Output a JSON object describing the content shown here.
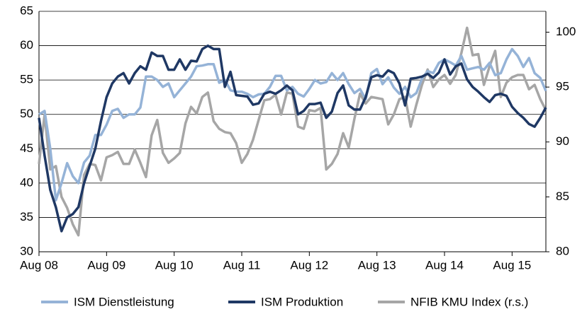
{
  "chart_data": {
    "type": "line",
    "categories": [
      "Aug 08",
      null,
      null,
      null,
      null,
      null,
      null,
      null,
      null,
      null,
      null,
      null,
      "Aug 09",
      null,
      null,
      null,
      null,
      null,
      null,
      null,
      null,
      null,
      null,
      null,
      "Aug 10",
      null,
      null,
      null,
      null,
      null,
      null,
      null,
      null,
      null,
      null,
      null,
      "Aug 11",
      null,
      null,
      null,
      null,
      null,
      null,
      null,
      null,
      null,
      null,
      null,
      "Aug 12",
      null,
      null,
      null,
      null,
      null,
      null,
      null,
      null,
      null,
      null,
      null,
      "Aug 13",
      null,
      null,
      null,
      null,
      null,
      null,
      null,
      null,
      null,
      null,
      null,
      "Aug 14",
      null,
      null,
      null,
      null,
      null,
      null,
      null,
      null,
      null,
      null,
      null,
      "Aug 15",
      null,
      null,
      null,
      null,
      null,
      null
    ],
    "series": [
      {
        "name": "ISM Dienstleistung",
        "color": "#95b3d7",
        "values": [
          50,
          50.5,
          45,
          37.5,
          40,
          42.9,
          41,
          40,
          43,
          44,
          47,
          47,
          48.5,
          50.5,
          50.8,
          49.5,
          50,
          50,
          51,
          55.5,
          55.5,
          55,
          54,
          54.5,
          52.5,
          53.5,
          54.5,
          55.5,
          57,
          57.1,
          57.3,
          57.3,
          54.6,
          55,
          53.5,
          53.3,
          53.3,
          53,
          52.5,
          52.9,
          53,
          54,
          55.6,
          55.6,
          53.5,
          54,
          53,
          52.6,
          53.7,
          55,
          54.5,
          54.7,
          56,
          55,
          56,
          54.4,
          53.1,
          53.7,
          52.2,
          56,
          56.6,
          54.4,
          55.4,
          53.9,
          53,
          54,
          52.5,
          53.1,
          55.2,
          56.3,
          56,
          57.5,
          58,
          57.6,
          57.1,
          58.5,
          56.5,
          56.7,
          56.9,
          56.5,
          57.5,
          55.7,
          56,
          58,
          59.5,
          58.5,
          56.9,
          58.2,
          56,
          55.3,
          53.4
        ]
      },
      {
        "name": "ISM Produktion",
        "color": "#1f3864",
        "values": [
          49.5,
          44,
          39,
          36.5,
          33,
          35,
          35.5,
          36.5,
          40,
          42.5,
          45,
          49,
          52.5,
          54.5,
          55.5,
          56,
          54.5,
          56,
          57,
          56.5,
          59,
          58.5,
          58.5,
          56.5,
          56.5,
          58,
          56.5,
          57.8,
          57.7,
          59.5,
          60,
          59.5,
          59.5,
          54,
          56.2,
          52.8,
          52.7,
          52.6,
          51.4,
          51.6,
          53,
          53.3,
          53,
          53.5,
          54.2,
          53.5,
          50,
          50.5,
          51.5,
          51.5,
          51.7,
          49.5,
          50.4,
          53.1,
          54.2,
          51.3,
          50.7,
          50.7,
          52.5,
          55.4,
          55.7,
          55.5,
          56.4,
          56,
          54.5,
          51.3,
          55.2,
          55.3,
          55.5,
          55.9,
          55.3,
          56.1,
          58,
          55.8,
          57,
          57.4,
          55.1,
          54,
          53.3,
          52.5,
          51.8,
          52.8,
          53,
          52.7,
          51.1,
          50.2,
          49.5,
          48.6,
          48.2,
          49.5,
          51
        ]
      },
      {
        "name": "NFIB KMU Index (r.s.)",
        "color": "#a6a6a6",
        "axis": "y2",
        "values": [
          88,
          92.5,
          87.5,
          87.8,
          85,
          84,
          82.5,
          81.5,
          87,
          88,
          87.9,
          86.5,
          88.6,
          88.8,
          89.1,
          88,
          88,
          89.3,
          88.1,
          86.8,
          90.6,
          92,
          89,
          88.1,
          88.5,
          89,
          91.7,
          93.2,
          92.6,
          94.1,
          94.5,
          91.9,
          91.2,
          90.9,
          90.8,
          89.9,
          88.1,
          88.9,
          90.2,
          92,
          93.8,
          93.9,
          94.3,
          92.5,
          94.5,
          94.4,
          91.4,
          91.2,
          92.9,
          92.8,
          93.1,
          87.5,
          88,
          88.9,
          90.8,
          89.5,
          92.1,
          94.4,
          93.5,
          94.1,
          94,
          93.9,
          91.6,
          92.5,
          93.9,
          94.1,
          91.4,
          93.4,
          95.2,
          96.6,
          95,
          95.7,
          96.1,
          95.3,
          96.1,
          98.1,
          100.4,
          97.9,
          98,
          95.2,
          96.9,
          98.3,
          94.1,
          95.4,
          95.9,
          96.1,
          96.1,
          94.8,
          95.2,
          93.9,
          92.9
        ]
      }
    ],
    "ylim": [
      30,
      65
    ],
    "yticks": [
      30,
      35,
      40,
      45,
      50,
      55,
      60,
      65
    ],
    "y2lim": [
      80,
      101.9
    ],
    "y2ticks": [
      80,
      85,
      90,
      95,
      100
    ],
    "grid": true
  }
}
